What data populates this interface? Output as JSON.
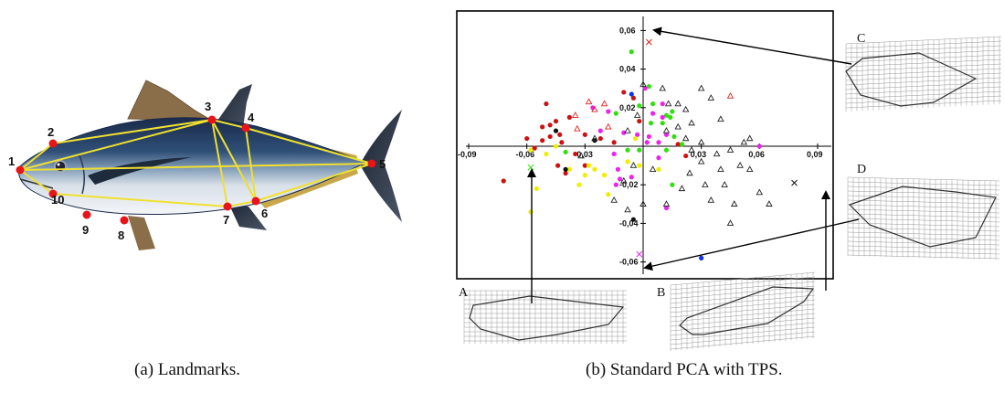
{
  "panel_a": {
    "caption": "(a)  Landmarks.",
    "landmarks": [
      "1",
      "2",
      "3",
      "4",
      "5",
      "6",
      "7",
      "8",
      "9",
      "10"
    ]
  },
  "panel_b": {
    "caption": "(b)  Standard PCA with TPS.",
    "grid_labels": {
      "A": "A",
      "B": "B",
      "C": "C",
      "D": "D"
    }
  },
  "chart_data": {
    "type": "scatter",
    "xlim": [
      -0.09,
      0.09
    ],
    "ylim": [
      -0.06,
      0.06
    ],
    "x_ticks": [
      "-0,09",
      "-0,06",
      "-0,03",
      "0,03",
      "0,06",
      "0,09"
    ],
    "x_tick_values": [
      -0.09,
      -0.06,
      -0.03,
      0.03,
      0.06,
      0.09
    ],
    "y_ticks": [
      "0,06",
      "0,04",
      "0,02",
      "-0,02",
      "-0,04",
      "-0,06"
    ],
    "y_tick_values": [
      0.06,
      0.04,
      0.02,
      -0.02,
      -0.04,
      -0.06
    ],
    "colors": {
      "red": "#cc1111",
      "green": "#33dd11",
      "magenta": "#ee22ee",
      "yellow": "#eeee00",
      "black": "#111111",
      "blue": "#1133ee",
      "tri_black": "#222222",
      "tri_red": "#dd2222"
    },
    "series": [
      {
        "color": "red",
        "marker": "dot",
        "points": [
          [
            -0.05,
            0.022
          ],
          [
            -0.048,
            0.011
          ],
          [
            -0.052,
            0.01
          ],
          [
            -0.045,
            0.013
          ],
          [
            -0.043,
            0.006
          ],
          [
            -0.038,
            0.015
          ],
          [
            -0.042,
            0.002
          ],
          [
            -0.048,
            0.005
          ],
          [
            -0.035,
            -0.004
          ],
          [
            -0.056,
            -0.001
          ],
          [
            -0.052,
            0.003
          ],
          [
            -0.072,
            -0.018
          ],
          [
            -0.044,
            -0.01
          ],
          [
            -0.04,
            -0.014
          ],
          [
            -0.03,
            0.006
          ],
          [
            -0.022,
            0.004
          ],
          [
            -0.015,
            0.002
          ],
          [
            -0.01,
            0.028
          ],
          [
            -0.005,
            0.025
          ],
          [
            -0.002,
            0.013
          ],
          [
            0.018,
            0.001
          ],
          [
            -0.06,
            0.004
          ],
          [
            -0.03,
            -0.01
          ],
          [
            0.022,
            -0.005
          ]
        ]
      },
      {
        "color": "green",
        "marker": "dot",
        "points": [
          [
            -0.006,
            0.049
          ],
          [
            0.003,
            0.031
          ],
          [
            -0.002,
            0.021
          ],
          [
            0.005,
            0.022
          ],
          [
            0.012,
            0.016
          ],
          [
            0.014,
            0.015
          ],
          [
            0.015,
            0.018
          ],
          [
            0.01,
            0.012
          ],
          [
            0.004,
            0.012
          ],
          [
            0.016,
            0.005
          ],
          [
            0.02,
            0.001
          ],
          [
            -0.014,
            0.017
          ],
          [
            -0.008,
            -0.002
          ],
          [
            -0.002,
            -0.002
          ],
          [
            -0.04,
            -0.003
          ],
          [
            0.012,
            -0.002
          ],
          [
            0.015,
            -0.02
          ]
        ]
      },
      {
        "color": "magenta",
        "marker": "dot",
        "points": [
          [
            -0.026,
            0.02
          ],
          [
            -0.018,
            0.018
          ],
          [
            -0.022,
            0.008
          ],
          [
            -0.01,
            0.007
          ],
          [
            -0.015,
            -0.004
          ],
          [
            -0.013,
            -0.012
          ],
          [
            -0.012,
            -0.017
          ],
          [
            -0.014,
            -0.02
          ],
          [
            0.002,
            0.002
          ],
          [
            0.005,
            0.017
          ],
          [
            0.01,
            0.022
          ],
          [
            0.001,
            0.03
          ],
          [
            -0.003,
            0.006
          ],
          [
            0.008,
            -0.006
          ],
          [
            0.012,
            0.006
          ],
          [
            0.06,
            0.0
          ],
          [
            0.012,
            -0.032
          ],
          [
            0.003,
            0.005
          ],
          [
            0.008,
            0.002
          ],
          [
            0.01,
            0.015
          ],
          [
            -0.006,
            -0.016
          ]
        ]
      },
      {
        "color": "yellow",
        "marker": "dot",
        "points": [
          [
            -0.05,
            -0.004
          ],
          [
            -0.058,
            -0.002
          ],
          [
            -0.045,
            0.0
          ],
          [
            -0.038,
            -0.012
          ],
          [
            -0.033,
            -0.02
          ],
          [
            -0.028,
            -0.01
          ],
          [
            -0.025,
            -0.012
          ],
          [
            -0.018,
            -0.025
          ],
          [
            -0.02,
            -0.015
          ],
          [
            -0.008,
            -0.008
          ],
          [
            -0.004,
            0.004
          ],
          [
            -0.002,
            -0.01
          ],
          [
            -0.058,
            -0.034
          ],
          [
            -0.055,
            -0.022
          ],
          [
            -0.03,
            -0.015
          ],
          [
            0.008,
            -0.012
          ]
        ]
      },
      {
        "color": "black",
        "marker": "dot",
        "points": [
          [
            -0.045,
            0.008
          ],
          [
            -0.04,
            -0.012
          ],
          [
            -0.025,
            0.003
          ],
          [
            -0.005,
            -0.038
          ]
        ]
      },
      {
        "color": "blue",
        "marker": "dot",
        "points": [
          [
            -0.006,
            0.027
          ],
          [
            0.03,
            -0.058
          ]
        ]
      },
      {
        "color": "tri_black",
        "marker": "triangle",
        "points": [
          [
            0.0,
            0.032
          ],
          [
            0.01,
            0.03
          ],
          [
            0.018,
            0.022
          ],
          [
            0.022,
            0.019
          ],
          [
            0.03,
            0.03
          ],
          [
            0.035,
            0.025
          ],
          [
            0.04,
            0.014
          ],
          [
            0.025,
            0.012
          ],
          [
            0.018,
            0.01
          ],
          [
            0.012,
            0.008
          ],
          [
            0.022,
            0.004
          ],
          [
            0.03,
            0.002
          ],
          [
            0.038,
            -0.004
          ],
          [
            0.045,
            -0.002
          ],
          [
            0.055,
            0.004
          ],
          [
            0.05,
            -0.01
          ],
          [
            0.04,
            -0.012
          ],
          [
            0.03,
            -0.008
          ],
          [
            0.024,
            -0.014
          ],
          [
            0.02,
            -0.022
          ],
          [
            0.032,
            -0.02
          ],
          [
            0.042,
            -0.02
          ],
          [
            0.055,
            -0.012
          ],
          [
            0.06,
            -0.024
          ],
          [
            0.065,
            -0.03
          ],
          [
            0.047,
            -0.03
          ],
          [
            0.035,
            -0.028
          ],
          [
            0.012,
            -0.03
          ],
          [
            0.0,
            -0.03
          ],
          [
            -0.01,
            -0.018
          ],
          [
            -0.005,
            -0.01
          ],
          [
            -0.003,
            0.016
          ],
          [
            -0.008,
            0.008
          ],
          [
            0.005,
            -0.012
          ],
          [
            0.045,
            -0.04
          ],
          [
            -0.008,
            -0.033
          ],
          [
            -0.015,
            -0.028
          ],
          [
            -0.025,
            0.004
          ],
          [
            -0.032,
            -0.005
          ],
          [
            0.052,
            0.002
          ],
          [
            0.025,
            -0.002
          ],
          [
            0.013,
            0.022
          ]
        ]
      },
      {
        "color": "tri_red",
        "marker": "triangle",
        "points": [
          [
            -0.028,
            0.023
          ],
          [
            -0.025,
            0.019
          ],
          [
            -0.035,
            0.016
          ],
          [
            -0.034,
            0.009
          ],
          [
            -0.02,
            0.022
          ],
          [
            0.045,
            0.026
          ],
          [
            -0.018,
            0.01
          ]
        ]
      },
      {
        "color": "red",
        "marker": "cross",
        "points": [
          [
            0.003,
            0.054
          ]
        ]
      },
      {
        "color": "magenta",
        "marker": "cross",
        "points": [
          [
            -0.002,
            -0.056
          ]
        ]
      },
      {
        "color": "black",
        "marker": "cross",
        "points": [
          [
            0.078,
            -0.019
          ]
        ]
      },
      {
        "color": "green",
        "marker": "cross",
        "points": [
          [
            -0.058,
            -0.011
          ]
        ]
      }
    ]
  }
}
